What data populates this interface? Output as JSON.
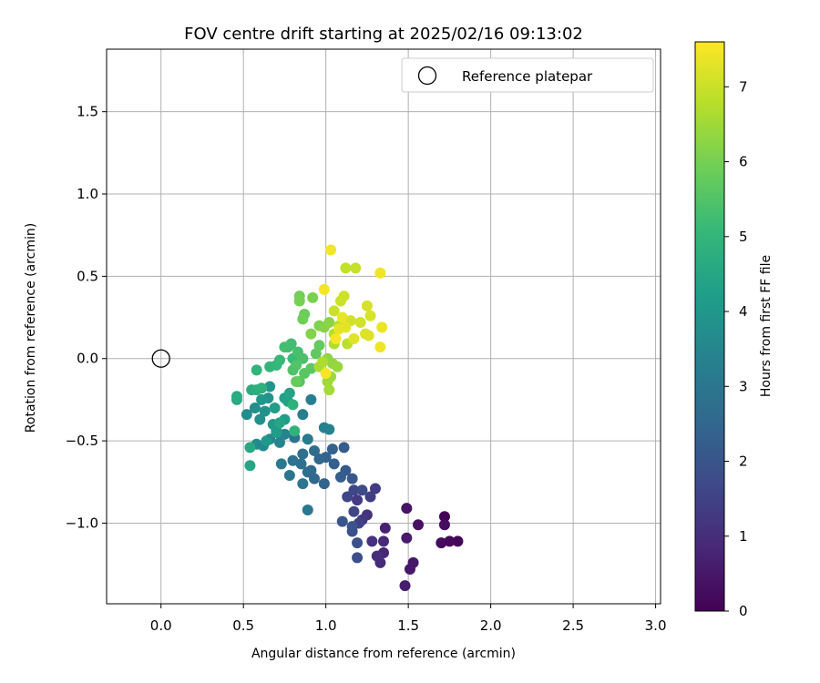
{
  "chart_data": {
    "type": "scatter",
    "title": "FOV centre drift starting at 2025/02/16 09:13:02",
    "xlabel": "Angular distance from reference (arcmin)",
    "ylabel": "Rotation from reference (arcmin)",
    "xlim": [
      -0.33,
      3.03
    ],
    "ylim": [
      -1.49,
      1.88
    ],
    "xticks": [
      "0.0",
      "0.5",
      "1.0",
      "1.5",
      "2.0",
      "2.5",
      "3.0"
    ],
    "yticks": [
      "−1.0",
      "−0.5",
      "0.0",
      "0.5",
      "1.0",
      "1.5"
    ],
    "xtick_values": [
      0,
      0.5,
      1.0,
      1.5,
      2.0,
      2.5,
      3.0
    ],
    "ytick_values": [
      -1.0,
      -0.5,
      0.0,
      0.5,
      1.0,
      1.5
    ],
    "grid": true,
    "legend": {
      "position": "upper right",
      "entries": [
        "Reference platepar"
      ]
    },
    "reference_point": {
      "x": 0.0,
      "y": 0.0,
      "label": "Reference platepar"
    },
    "colorbar": {
      "label": "Hours from first FF file",
      "range": [
        0,
        7.6
      ],
      "ticks": [
        "0",
        "1",
        "2",
        "3",
        "4",
        "5",
        "6",
        "7"
      ],
      "tick_values": [
        0,
        1,
        2,
        3,
        4,
        5,
        6,
        7
      ],
      "colormap": "viridis",
      "colors": [
        "#440154",
        "#482878",
        "#3e4989",
        "#31688e",
        "#26828e",
        "#1f9e89",
        "#35b779",
        "#6ece58",
        "#b5de2b",
        "#fde725"
      ]
    },
    "points": [
      [
        1.72,
        -0.96,
        0.05
      ],
      [
        1.8,
        -1.11,
        0.1
      ],
      [
        1.75,
        -1.11,
        0.15
      ],
      [
        1.7,
        -1.12,
        0.2
      ],
      [
        1.72,
        -1.01,
        0.25
      ],
      [
        1.56,
        -1.01,
        0.35
      ],
      [
        1.49,
        -0.91,
        0.4
      ],
      [
        1.53,
        -1.24,
        0.45
      ],
      [
        1.51,
        -1.28,
        0.5
      ],
      [
        1.49,
        -1.09,
        0.55
      ],
      [
        1.48,
        -1.38,
        0.62
      ],
      [
        1.36,
        -1.03,
        0.7
      ],
      [
        1.35,
        -1.18,
        0.78
      ],
      [
        1.35,
        -1.11,
        0.85
      ],
      [
        1.33,
        -1.24,
        0.92
      ],
      [
        1.31,
        -1.2,
        1.0
      ],
      [
        1.28,
        -1.11,
        1.08
      ],
      [
        1.25,
        -0.95,
        1.15
      ],
      [
        1.22,
        -0.98,
        1.22
      ],
      [
        1.19,
        -0.86,
        1.3
      ],
      [
        1.3,
        -0.79,
        1.35
      ],
      [
        1.27,
        -0.84,
        1.42
      ],
      [
        1.2,
        -1.0,
        1.48
      ],
      [
        1.17,
        -0.93,
        1.55
      ],
      [
        1.13,
        -0.84,
        1.6
      ],
      [
        1.17,
        -0.8,
        1.67
      ],
      [
        1.22,
        -0.8,
        1.73
      ],
      [
        1.19,
        -1.21,
        1.8
      ],
      [
        1.19,
        -1.12,
        1.86
      ],
      [
        1.16,
        -1.05,
        1.92
      ],
      [
        1.16,
        -1.02,
        1.98
      ],
      [
        1.1,
        -0.99,
        2.04
      ],
      [
        1.16,
        -0.73,
        2.1
      ],
      [
        1.12,
        -0.68,
        2.15
      ],
      [
        1.11,
        -0.54,
        2.2
      ],
      [
        1.09,
        -0.72,
        2.25
      ],
      [
        1.05,
        -0.64,
        2.3
      ],
      [
        1.04,
        -0.55,
        2.35
      ],
      [
        1.0,
        -0.6,
        2.4
      ],
      [
        0.99,
        -0.76,
        2.45
      ],
      [
        0.96,
        -0.61,
        2.5
      ],
      [
        0.93,
        -0.73,
        2.55
      ],
      [
        0.91,
        -0.68,
        2.6
      ],
      [
        0.93,
        -0.56,
        2.65
      ],
      [
        0.89,
        -0.69,
        2.7
      ],
      [
        0.86,
        -0.58,
        2.75
      ],
      [
        0.85,
        -0.64,
        2.8
      ],
      [
        0.8,
        -0.62,
        2.85
      ],
      [
        0.81,
        -0.48,
        2.9
      ],
      [
        0.78,
        -0.71,
        2.95
      ],
      [
        0.86,
        -0.76,
        3.0
      ],
      [
        0.89,
        -0.92,
        3.05
      ],
      [
        0.73,
        -0.64,
        3.1
      ],
      [
        0.89,
        -0.49,
        3.15
      ],
      [
        0.86,
        -0.34,
        3.2
      ],
      [
        0.91,
        -0.25,
        3.25
      ],
      [
        0.99,
        -0.42,
        3.3
      ],
      [
        1.02,
        -0.43,
        3.35
      ],
      [
        0.75,
        -0.46,
        3.4
      ],
      [
        0.72,
        -0.51,
        3.45
      ],
      [
        0.7,
        -0.44,
        3.5
      ],
      [
        0.66,
        -0.49,
        3.55
      ],
      [
        0.62,
        -0.53,
        3.6
      ],
      [
        0.58,
        -0.52,
        3.65
      ],
      [
        0.52,
        -0.34,
        3.7
      ],
      [
        0.57,
        -0.3,
        3.75
      ],
      [
        0.6,
        -0.37,
        3.8
      ],
      [
        0.63,
        -0.32,
        3.85
      ],
      [
        0.65,
        -0.24,
        3.9
      ],
      [
        0.66,
        -0.17,
        3.95
      ],
      [
        0.61,
        -0.25,
        4.0
      ],
      [
        0.64,
        -0.5,
        4.05
      ],
      [
        0.68,
        -0.4,
        4.1
      ],
      [
        0.7,
        -0.45,
        4.15
      ],
      [
        0.69,
        -0.3,
        4.2
      ],
      [
        0.75,
        -0.37,
        4.25
      ],
      [
        0.75,
        -0.24,
        4.3
      ],
      [
        0.77,
        -0.26,
        4.35
      ],
      [
        0.78,
        -0.21,
        4.4
      ],
      [
        0.72,
        -0.39,
        4.45
      ],
      [
        0.54,
        -0.65,
        4.5
      ],
      [
        0.54,
        -0.54,
        4.55
      ],
      [
        0.46,
        -0.25,
        4.6
      ],
      [
        0.46,
        -0.23,
        4.65
      ],
      [
        0.55,
        -0.19,
        4.7
      ],
      [
        0.58,
        -0.19,
        4.75
      ],
      [
        0.61,
        -0.18,
        4.8
      ],
      [
        0.8,
        -0.28,
        4.85
      ],
      [
        0.81,
        -0.44,
        4.9
      ],
      [
        0.58,
        -0.07,
        4.95
      ],
      [
        0.66,
        -0.05,
        5.0
      ],
      [
        0.7,
        -0.04,
        5.05
      ],
      [
        0.72,
        -0.01,
        5.1
      ],
      [
        0.8,
        0.0,
        5.15
      ],
      [
        0.77,
        0.07,
        5.2
      ],
      [
        0.79,
        0.09,
        5.25
      ],
      [
        0.75,
        0.07,
        5.3
      ],
      [
        0.83,
        0.04,
        5.35
      ],
      [
        0.86,
        0.0,
        5.4
      ],
      [
        0.8,
        -0.07,
        5.45
      ],
      [
        0.82,
        -0.04,
        5.5
      ],
      [
        0.84,
        -0.14,
        5.55
      ],
      [
        0.87,
        -0.09,
        5.6
      ],
      [
        0.91,
        -0.06,
        5.65
      ],
      [
        0.94,
        0.03,
        5.7
      ],
      [
        0.96,
        0.08,
        5.75
      ],
      [
        0.82,
        -0.14,
        5.8
      ],
      [
        0.87,
        0.27,
        5.85
      ],
      [
        0.86,
        0.24,
        5.9
      ],
      [
        0.84,
        0.38,
        5.95
      ],
      [
        0.84,
        0.35,
        6.0
      ],
      [
        0.92,
        0.37,
        6.05
      ],
      [
        0.96,
        0.2,
        6.1
      ],
      [
        0.91,
        0.15,
        6.15
      ],
      [
        0.99,
        0.19,
        6.2
      ],
      [
        1.02,
        0.22,
        6.25
      ],
      [
        1.01,
        0.0,
        6.3
      ],
      [
        1.04,
        -0.03,
        6.35
      ],
      [
        1.07,
        -0.05,
        6.4
      ],
      [
        1.03,
        -0.11,
        6.45
      ],
      [
        1.01,
        -0.14,
        6.5
      ],
      [
        1.02,
        -0.19,
        6.55
      ],
      [
        0.96,
        -0.05,
        6.6
      ],
      [
        0.98,
        -0.02,
        6.65
      ],
      [
        1.05,
        0.09,
        6.7
      ],
      [
        1.05,
        0.15,
        6.75
      ],
      [
        1.08,
        0.2,
        6.8
      ],
      [
        1.13,
        0.09,
        6.85
      ],
      [
        1.12,
        0.55,
        6.9
      ],
      [
        1.18,
        0.55,
        6.95
      ],
      [
        1.05,
        0.29,
        7.0
      ],
      [
        1.09,
        0.35,
        7.02
      ],
      [
        1.11,
        0.38,
        7.05
      ],
      [
        1.15,
        0.23,
        7.08
      ],
      [
        1.21,
        0.22,
        7.1
      ],
      [
        1.25,
        0.32,
        7.13
      ],
      [
        1.27,
        0.26,
        7.16
      ],
      [
        1.24,
        0.15,
        7.2
      ],
      [
        1.26,
        0.14,
        7.23
      ],
      [
        1.17,
        0.12,
        7.26
      ],
      [
        1.12,
        0.19,
        7.3
      ],
      [
        1.08,
        0.18,
        7.33
      ],
      [
        1.1,
        0.25,
        7.36
      ],
      [
        1.34,
        0.19,
        7.39
      ],
      [
        1.33,
        0.07,
        7.42
      ],
      [
        1.33,
        0.52,
        7.45
      ],
      [
        1.03,
        0.66,
        7.48
      ],
      [
        0.99,
        0.42,
        7.5
      ],
      [
        1.0,
        -0.09,
        7.52
      ],
      [
        1.06,
        0.12,
        7.54
      ]
    ]
  }
}
